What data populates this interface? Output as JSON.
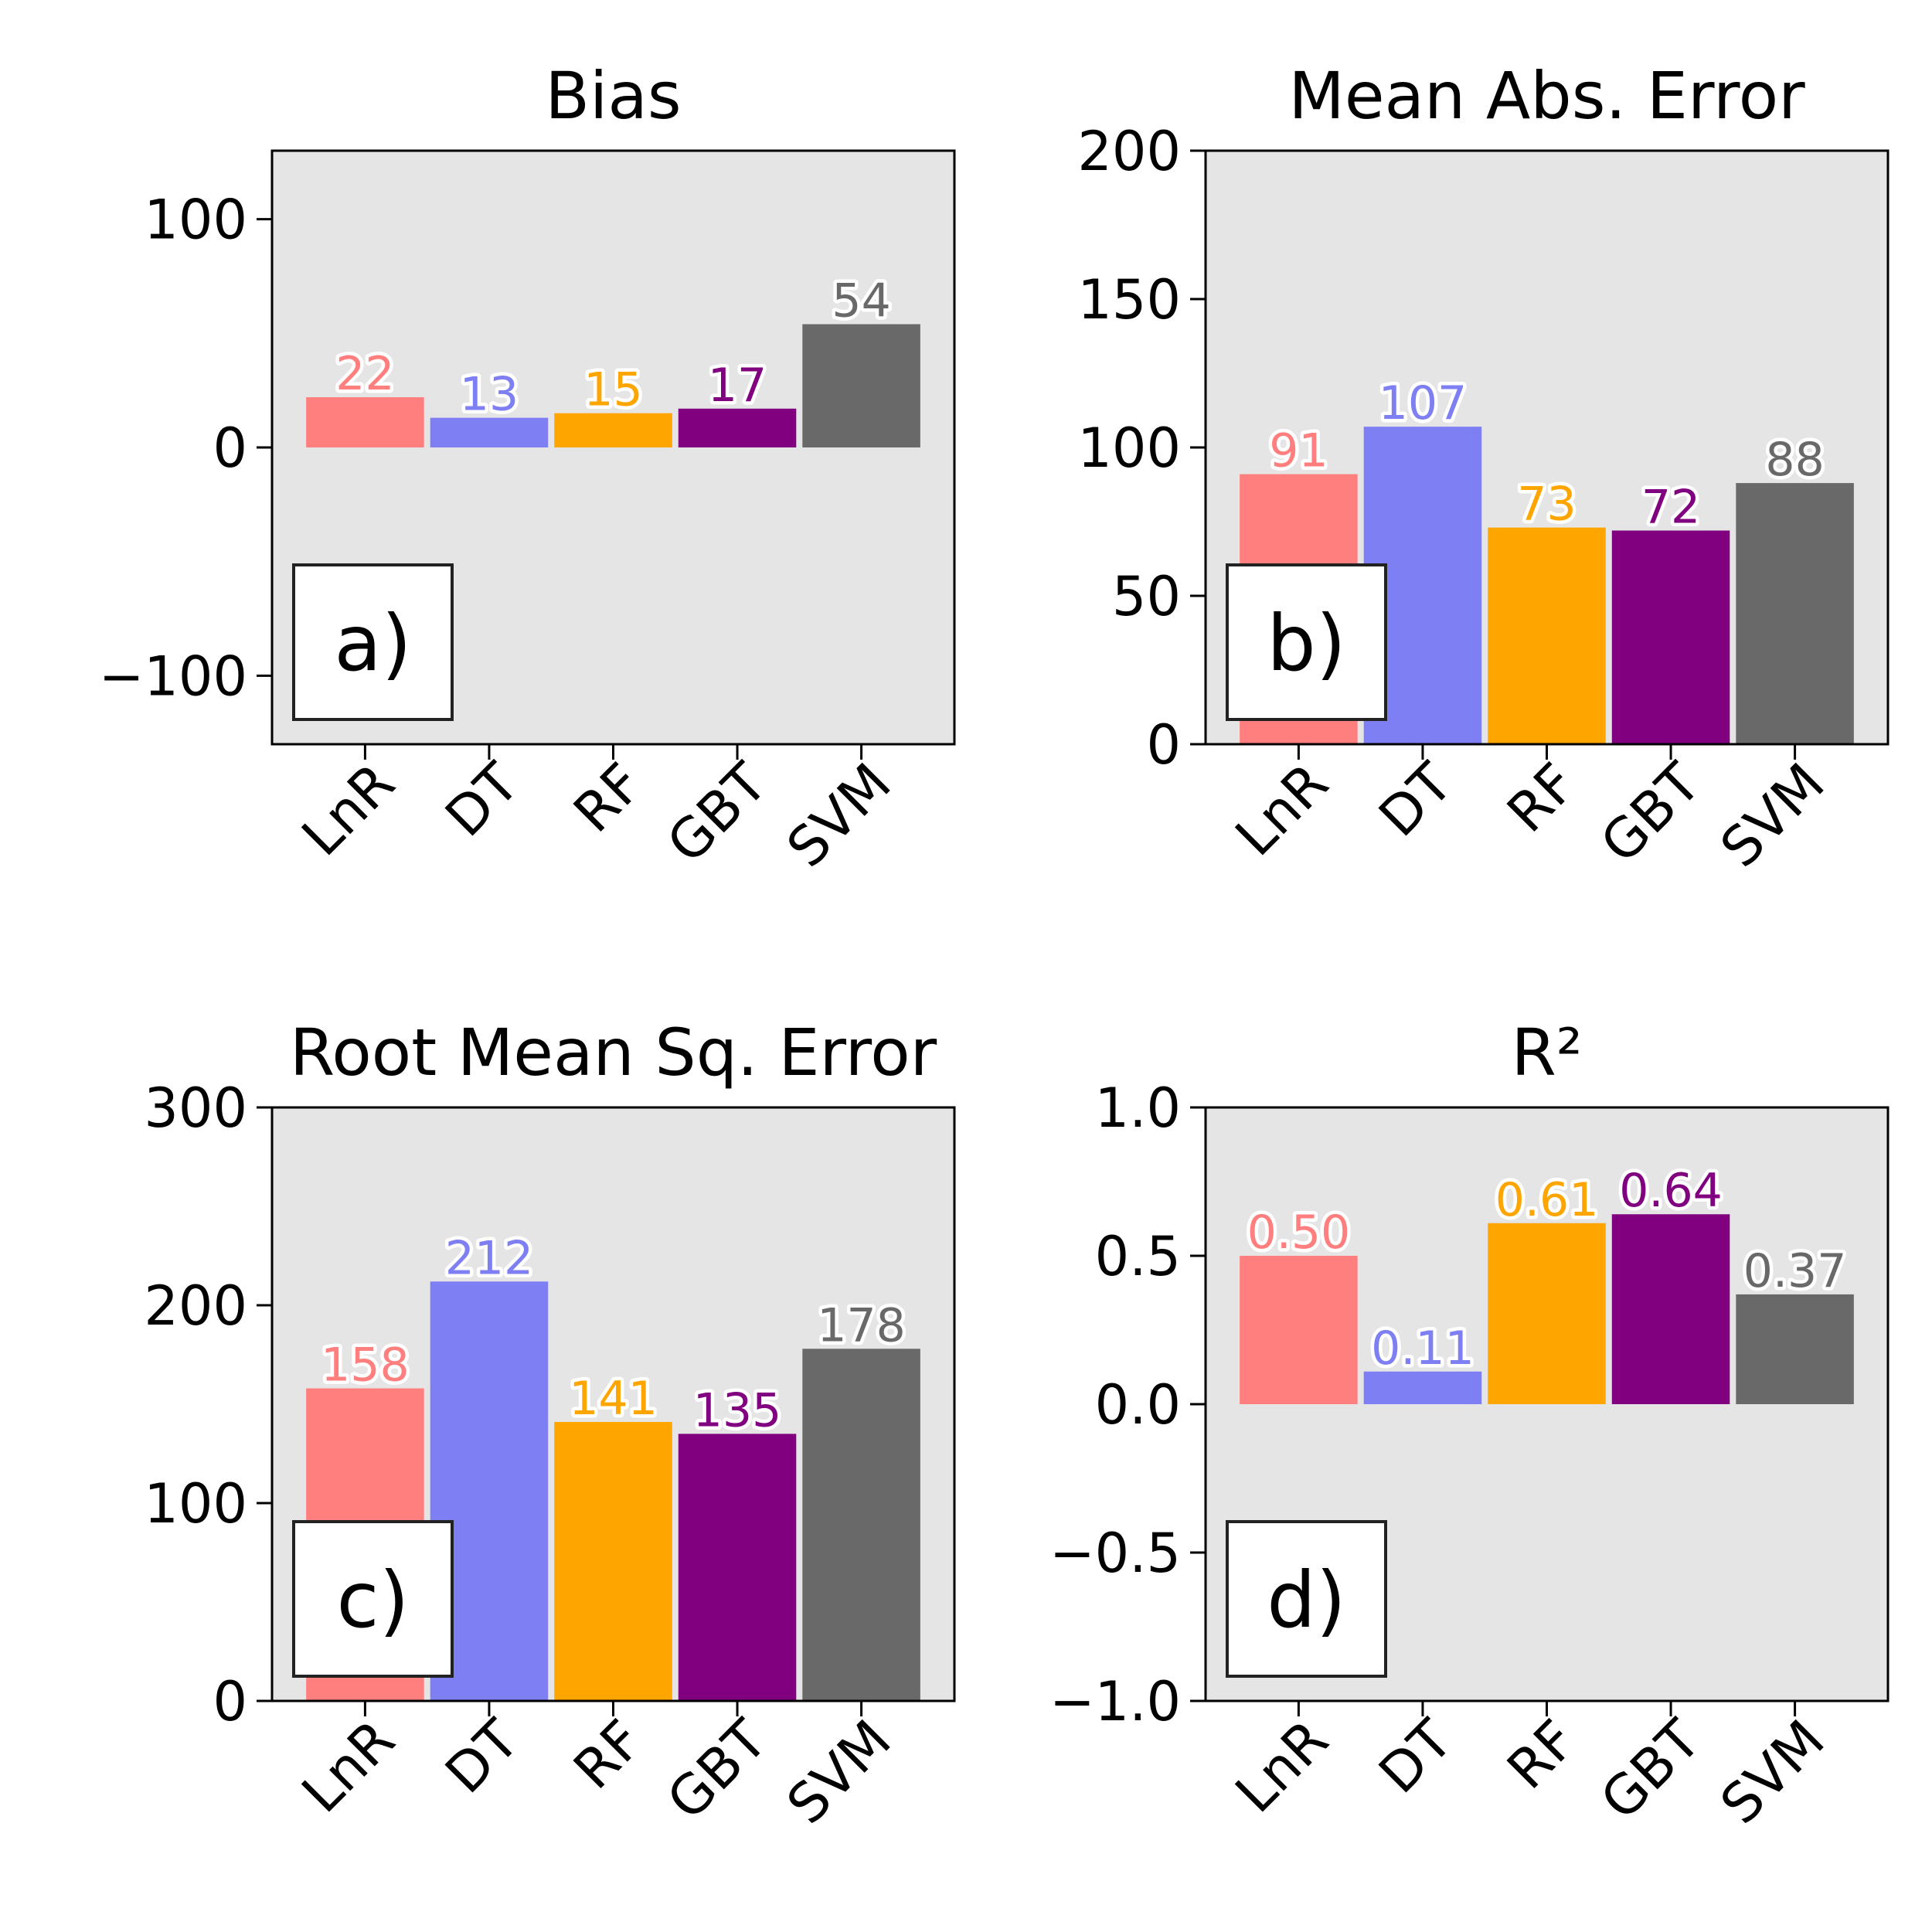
{
  "chart_data": [
    {
      "type": "bar",
      "title": "Bias",
      "panel_label": "a)",
      "categories": [
        "LnR",
        "DT",
        "RF",
        "GBT",
        "SVM"
      ],
      "values": [
        22,
        13,
        15,
        17,
        54
      ],
      "value_labels": [
        "22",
        "13",
        "15",
        "17",
        "54"
      ],
      "ylim": [
        -130,
        130
      ],
      "yticks": [
        -100,
        0,
        100
      ],
      "ytick_labels": [
        "−100",
        "0",
        "100"
      ]
    },
    {
      "type": "bar",
      "title": "Mean Abs. Error",
      "panel_label": "b)",
      "categories": [
        "LnR",
        "DT",
        "RF",
        "GBT",
        "SVM"
      ],
      "values": [
        91,
        107,
        73,
        72,
        88
      ],
      "value_labels": [
        "91",
        "107",
        "73",
        "72",
        "88"
      ],
      "ylim": [
        0,
        200
      ],
      "yticks": [
        0,
        50,
        100,
        150,
        200
      ],
      "ytick_labels": [
        "0",
        "50",
        "100",
        "150",
        "200"
      ]
    },
    {
      "type": "bar",
      "title": "Root Mean Sq. Error",
      "panel_label": "c)",
      "categories": [
        "LnR",
        "DT",
        "RF",
        "GBT",
        "SVM"
      ],
      "values": [
        158,
        212,
        141,
        135,
        178
      ],
      "value_labels": [
        "158",
        "212",
        "141",
        "135",
        "178"
      ],
      "ylim": [
        0,
        300
      ],
      "yticks": [
        0,
        100,
        200,
        300
      ],
      "ytick_labels": [
        "0",
        "100",
        "200",
        "300"
      ]
    },
    {
      "type": "bar",
      "title": "R²",
      "panel_label": "d)",
      "categories": [
        "LnR",
        "DT",
        "RF",
        "GBT",
        "SVM"
      ],
      "values": [
        0.5,
        0.11,
        0.61,
        0.64,
        0.37
      ],
      "value_labels": [
        "0.50",
        "0.11",
        "0.61",
        "0.64",
        "0.37"
      ],
      "ylim": [
        -1.0,
        1.0
      ],
      "yticks": [
        -1.0,
        -0.5,
        0.0,
        0.5,
        1.0
      ],
      "ytick_labels": [
        "−1.0",
        "−0.5",
        "0.0",
        "0.5",
        "1.0"
      ]
    }
  ],
  "colors": {
    "LnR": "#ff7f7f",
    "DT": "#7f7ff4",
    "RF": "#ffa500",
    "GBT": "#800080",
    "SVM": "#696969",
    "axes_background": "#e5e5e5"
  },
  "grid": false,
  "legend": "none"
}
